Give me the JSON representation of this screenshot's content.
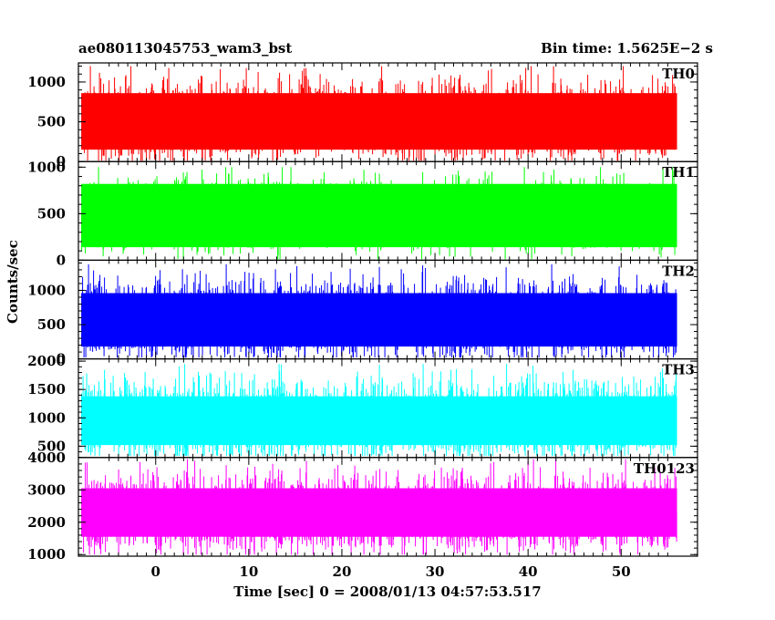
{
  "header": {
    "left": "ae080113045753_wam3_bst",
    "right": "Bin time: 1.5625E−2 s"
  },
  "chart_data": {
    "type": "line",
    "xlabel": "Time [sec] 0 = 2008/01/13 04:57:53.517",
    "ylabel": "Counts/sec",
    "xlim": [
      -8.3,
      58.2
    ],
    "xticks": [
      0,
      10,
      20,
      30,
      40,
      50
    ],
    "data_x_range": [
      -8.0,
      56.0
    ],
    "bin_time": 0.015625,
    "panels": [
      {
        "name": "TH0",
        "color": "#ff0000",
        "ylim": [
          0,
          1240
        ],
        "yticks": [
          0,
          500,
          1000
        ],
        "center": 500,
        "band_low": 150,
        "band_high": 860,
        "min": 10,
        "max": 1200
      },
      {
        "name": "TH1",
        "color": "#00ff00",
        "ylim": [
          0,
          1060
        ],
        "yticks": [
          0,
          500,
          1000
        ],
        "center": 470,
        "band_low": 140,
        "band_high": 820,
        "min": 10,
        "max": 1000
      },
      {
        "name": "TH2",
        "color": "#0000ff",
        "ylim": [
          0,
          1440
        ],
        "yticks": [
          0,
          500,
          1000
        ],
        "center": 560,
        "band_low": 180,
        "band_high": 960,
        "min": 20,
        "max": 1380
      },
      {
        "name": "TH3",
        "color": "#00ffff",
        "ylim": [
          300,
          2040
        ],
        "yticks": [
          500,
          1000,
          1500,
          2000
        ],
        "center": 950,
        "band_low": 520,
        "band_high": 1380,
        "min": 330,
        "max": 1950
      },
      {
        "name": "TH0123",
        "color": "#ff00ff",
        "ylim": [
          950,
          4000
        ],
        "yticks": [
          1000,
          2000,
          3000,
          4000
        ],
        "center": 2250,
        "band_low": 1550,
        "band_high": 3050,
        "min": 1000,
        "max": 3950
      }
    ]
  }
}
